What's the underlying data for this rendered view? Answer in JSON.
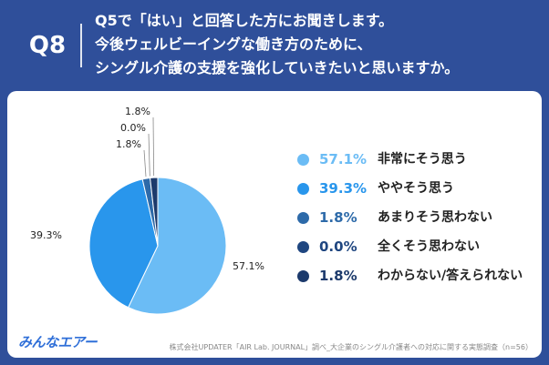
{
  "header": {
    "q_label": "Q8",
    "question_lines": [
      "Q5で「はい」と回答した方にお聞きします。",
      "今後ウェルビーイングな働き方のために、",
      "シングル介護の支援を強化していきたいと思いますか。"
    ]
  },
  "chart_data": {
    "type": "pie",
    "slices": [
      {
        "label": "非常にそう思う",
        "value": 57.1,
        "display": "57.1%",
        "color": "#6bbcf5"
      },
      {
        "label": "ややそう思う",
        "value": 39.3,
        "display": "39.3%",
        "color": "#2996ec"
      },
      {
        "label": "あまりそう思わない",
        "value": 1.8,
        "display": "1.8%",
        "color": "#2d6aa9"
      },
      {
        "label": "全くそう思わない",
        "value": 0.0,
        "display": "0.0%",
        "color": "#1f4680"
      },
      {
        "label": "わからない/答えられない",
        "value": 1.8,
        "display": "1.8%",
        "color": "#1c3a6c"
      }
    ],
    "start": "12 o'clock, clockwise",
    "legend_placement": "right"
  },
  "footer": {
    "logo": "みんなエアー",
    "source": "株式会社UPDATER「AIR Lab. JOURNAL」調べ_大企業のシングル介護者への対応に関する実態調査（n=56）"
  }
}
